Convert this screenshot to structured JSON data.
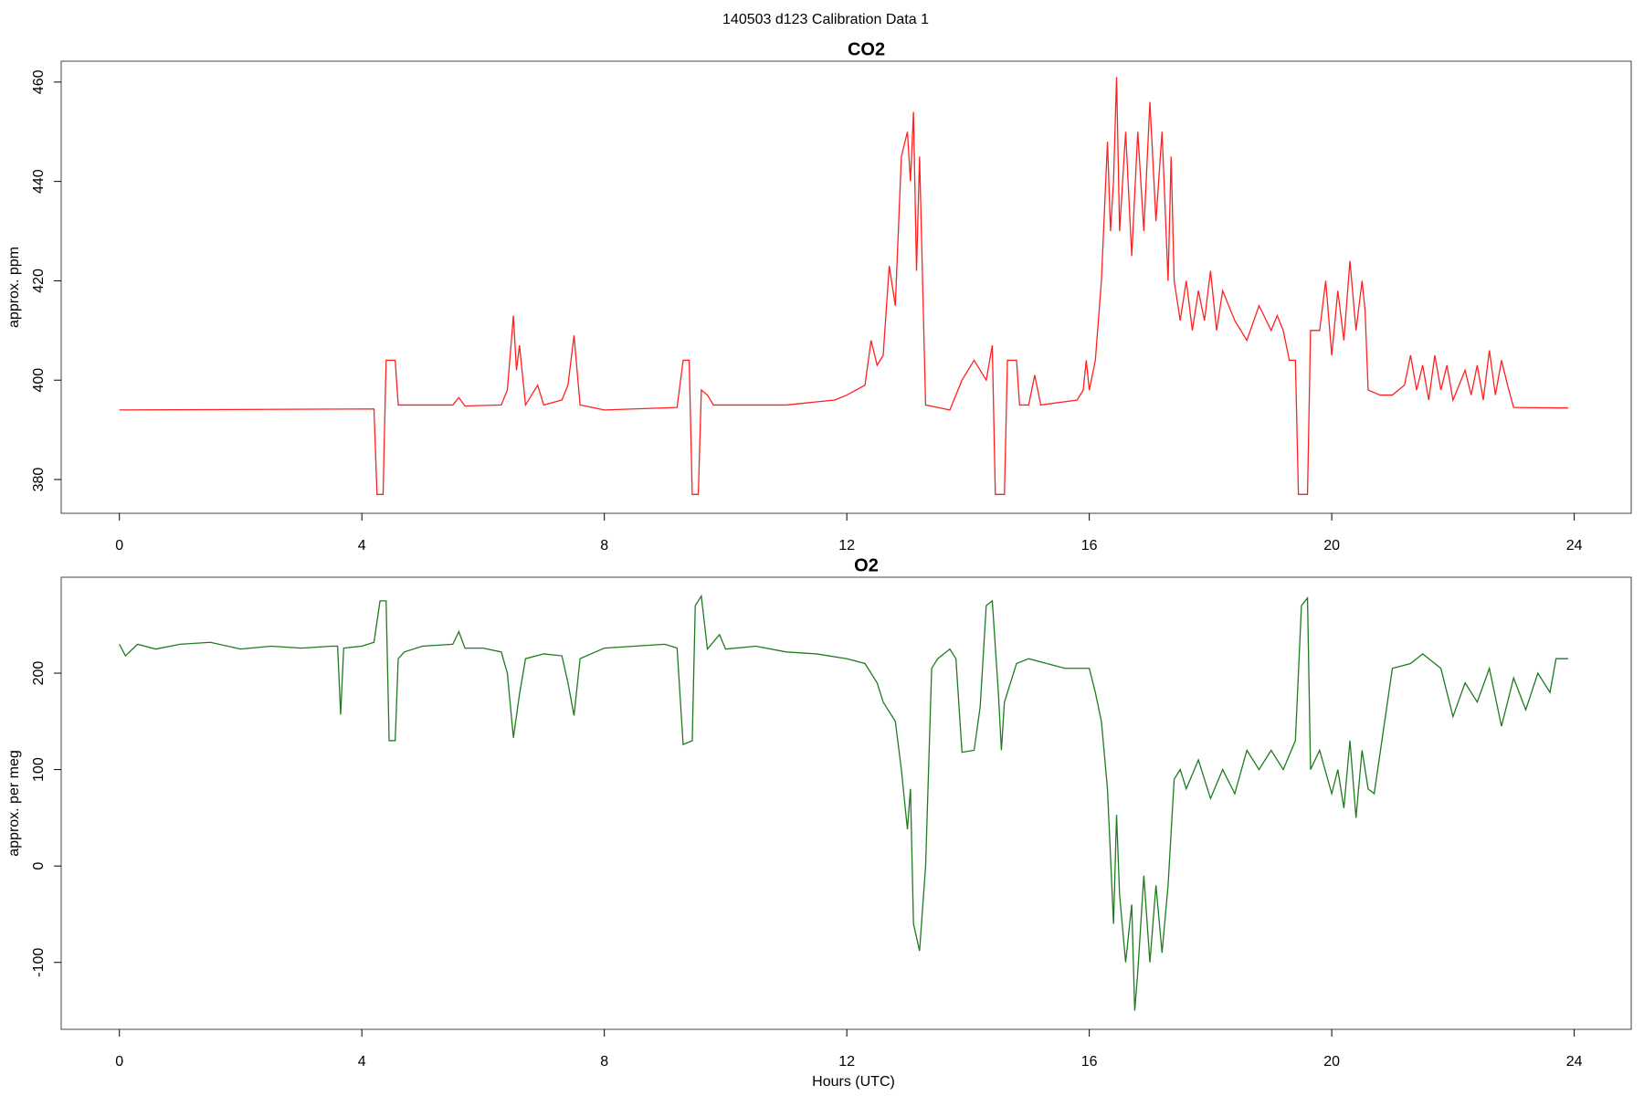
{
  "title": "140503   d123   Calibration Data 1",
  "chart_data": [
    {
      "type": "line",
      "title": "CO2",
      "ylabel": "approx. ppm",
      "color": "#ff2020",
      "xlim": [
        -0.96,
        24.94
      ],
      "xticks": [
        0,
        4,
        8,
        12,
        16,
        20,
        24
      ],
      "ylim": [
        373.2,
        464.2
      ],
      "yticks": [
        380,
        400,
        420,
        440,
        460
      ],
      "x": [
        0,
        4.2,
        4.25,
        4.35,
        4.4,
        4.55,
        4.6,
        5.5,
        5.6,
        5.7,
        6.3,
        6.4,
        6.5,
        6.55,
        6.6,
        6.7,
        6.9,
        7.0,
        7.3,
        7.4,
        7.5,
        7.6,
        8,
        9.2,
        9.3,
        9.4,
        9.45,
        9.55,
        9.6,
        9.7,
        9.8,
        11,
        11.8,
        12,
        12.3,
        12.4,
        12.5,
        12.6,
        12.7,
        12.8,
        12.9,
        13.0,
        13.05,
        13.1,
        13.15,
        13.2,
        13.3,
        13.5,
        13.7,
        13.9,
        14.1,
        14.3,
        14.4,
        14.45,
        14.6,
        14.65,
        14.8,
        14.85,
        15.0,
        15.1,
        15.2,
        15.8,
        15.9,
        15.95,
        16.0,
        16.1,
        16.2,
        16.3,
        16.35,
        16.4,
        16.45,
        16.5,
        16.6,
        16.7,
        16.8,
        16.9,
        17.0,
        17.1,
        17.2,
        17.3,
        17.35,
        17.4,
        17.5,
        17.6,
        17.7,
        17.8,
        17.9,
        18.0,
        18.1,
        18.2,
        18.4,
        18.6,
        18.8,
        19.0,
        19.1,
        19.2,
        19.3,
        19.4,
        19.45,
        19.6,
        19.65,
        19.8,
        19.9,
        20.0,
        20.1,
        20.2,
        20.3,
        20.4,
        20.5,
        20.55,
        20.6,
        20.8,
        21.0,
        21.2,
        21.3,
        21.4,
        21.5,
        21.6,
        21.7,
        21.8,
        21.9,
        22.0,
        22.2,
        22.3,
        22.4,
        22.5,
        22.6,
        22.7,
        22.8,
        22.9,
        23.0,
        23.9
      ],
      "values": [
        394,
        394.2,
        377,
        377,
        404,
        404,
        395,
        395,
        396.5,
        394.8,
        395,
        398,
        413,
        402,
        407,
        395,
        399,
        395,
        396,
        399,
        409,
        395,
        394,
        394.5,
        404,
        404,
        377,
        377,
        398,
        397,
        395,
        395,
        396,
        397,
        399,
        408,
        403,
        405,
        423,
        415,
        445,
        450,
        440,
        454,
        422,
        445,
        395,
        394.5,
        394,
        400,
        404,
        400,
        407,
        377,
        377,
        404,
        404,
        395,
        395,
        401,
        395,
        396,
        398,
        404,
        398,
        404,
        420,
        448,
        430,
        440,
        461,
        430,
        450,
        425,
        450,
        430,
        456,
        432,
        450,
        420,
        445,
        420,
        412,
        420,
        410,
        418,
        412,
        422,
        410,
        418,
        412,
        408,
        415,
        410,
        413,
        410,
        404,
        404,
        377,
        377,
        410,
        410,
        420,
        405,
        418,
        408,
        424,
        410,
        420,
        414,
        398,
        397,
        397,
        399,
        405,
        398,
        403,
        396,
        405,
        398,
        403,
        396,
        402,
        397,
        403,
        396,
        406,
        397,
        404,
        399,
        394.5,
        394.4
      ]
    },
    {
      "type": "line",
      "title": "O2",
      "ylabel": "approx. per meg",
      "xlabel": "Hours (UTC)",
      "color": "#1e7b1e",
      "xlim": [
        -0.96,
        24.94
      ],
      "xticks": [
        0,
        4,
        8,
        12,
        16,
        20,
        24
      ],
      "ylim": [
        -169.4,
        299.5
      ],
      "yticks": [
        -100,
        0,
        100,
        200
      ],
      "x": [
        0,
        0.1,
        0.3,
        0.6,
        1.0,
        1.5,
        2,
        2.5,
        3,
        3.5,
        3.6,
        3.65,
        3.7,
        4.0,
        4.2,
        4.3,
        4.4,
        4.45,
        4.55,
        4.6,
        4.7,
        5,
        5.5,
        5.6,
        5.7,
        6,
        6.3,
        6.4,
        6.5,
        6.6,
        6.7,
        7,
        7.3,
        7.4,
        7.5,
        7.6,
        8,
        8.5,
        9.0,
        9.2,
        9.3,
        9.45,
        9.5,
        9.6,
        9.7,
        9.9,
        10,
        10.5,
        11,
        11.5,
        12,
        12.3,
        12.5,
        12.6,
        12.8,
        12.9,
        13.0,
        13.05,
        13.1,
        13.2,
        13.3,
        13.4,
        13.5,
        13.7,
        13.8,
        13.9,
        14.1,
        14.2,
        14.3,
        14.4,
        14.5,
        14.55,
        14.6,
        14.8,
        15,
        15.3,
        15.6,
        16,
        16.1,
        16.2,
        16.3,
        16.4,
        16.45,
        16.5,
        16.6,
        16.7,
        16.75,
        16.8,
        16.9,
        17.0,
        17.1,
        17.2,
        17.3,
        17.4,
        17.5,
        17.6,
        17.8,
        18.0,
        18.2,
        18.4,
        18.6,
        18.8,
        19.0,
        19.2,
        19.4,
        19.5,
        19.6,
        19.65,
        19.8,
        20.0,
        20.1,
        20.2,
        20.3,
        20.4,
        20.5,
        20.6,
        20.7,
        21,
        21.3,
        21.5,
        21.8,
        22.0,
        22.2,
        22.4,
        22.6,
        22.8,
        23.0,
        23.2,
        23.4,
        23.6,
        23.7,
        23.9
      ],
      "values": [
        230,
        218,
        230,
        225,
        230,
        232,
        225,
        228,
        226,
        228,
        228,
        157,
        226,
        228,
        232,
        275,
        275,
        130,
        130,
        215,
        222,
        228,
        230,
        243,
        226,
        226,
        222,
        200,
        133,
        178,
        215,
        220,
        218,
        190,
        156,
        215,
        226,
        228,
        230,
        226,
        126,
        130,
        270,
        280,
        225,
        240,
        225,
        228,
        222,
        220,
        215,
        210,
        190,
        170,
        150,
        100,
        38,
        80,
        -60,
        -88,
        0,
        205,
        215,
        225,
        215,
        118,
        120,
        165,
        270,
        275,
        180,
        120,
        170,
        210,
        215,
        210,
        205,
        205,
        180,
        150,
        80,
        -60,
        53,
        -30,
        -100,
        -40,
        -150,
        -110,
        -10,
        -100,
        -20,
        -90,
        -20,
        90,
        100,
        80,
        110,
        70,
        100,
        75,
        120,
        100,
        120,
        100,
        130,
        270,
        278,
        100,
        120,
        75,
        100,
        60,
        130,
        50,
        120,
        80,
        75,
        205,
        210,
        220,
        205,
        155,
        190,
        170,
        205,
        145,
        195,
        162,
        200,
        180,
        215,
        215
      ]
    }
  ]
}
